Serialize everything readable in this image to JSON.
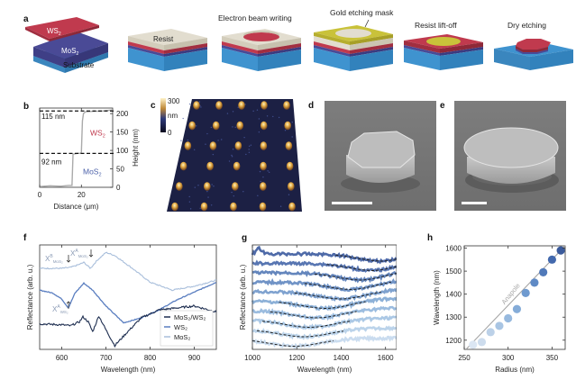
{
  "panel_labels": {
    "a": "a",
    "b": "b",
    "c": "c",
    "d": "d",
    "e": "e",
    "f": "f",
    "g": "g",
    "h": "h"
  },
  "panel_a": {
    "layers": {
      "top": "WS",
      "top_sub": "2",
      "middle": "MoS",
      "middle_sub": "2",
      "bottom": "Substrate"
    },
    "steps": [
      {
        "caption": "Resist",
        "position": "on-block"
      },
      {
        "caption": "Electron beam writing"
      },
      {
        "caption": "Gold etching mask"
      },
      {
        "caption": "Resist lift-off"
      },
      {
        "caption": "Dry etching"
      }
    ],
    "colors": {
      "ws2": "#c03a4e",
      "mos2": "#4a4a96",
      "substrate": "#3f93cf",
      "resist": "#e2ddcf",
      "gold": "#c9c23a"
    }
  },
  "chart_data": [
    {
      "panel": "b",
      "type": "line",
      "xlabel": "Distance (μm)",
      "ylabel": "Height (nm)",
      "xlim": [
        0,
        35
      ],
      "ylim": [
        0,
        215
      ],
      "xticks": [
        "0",
        "20"
      ],
      "yticks": [
        "0",
        "50",
        "100",
        "150",
        "200"
      ],
      "series": [
        {
          "name": "profile",
          "x": [
            0,
            5,
            10,
            14,
            15.5,
            16,
            18,
            19.5,
            20,
            20.5,
            21,
            22,
            25,
            30,
            35
          ],
          "y": [
            2,
            4,
            3,
            5,
            5,
            90,
            92,
            92,
            95,
            180,
            200,
            205,
            206,
            207,
            210
          ]
        }
      ],
      "annotations": [
        {
          "text": "115 nm"
        },
        {
          "text": "92 nm"
        },
        {
          "text": "WS",
          "sub": "2",
          "color": "#c03a4e"
        },
        {
          "text": "MoS",
          "sub": "2",
          "color": "#4a5fa8"
        }
      ],
      "dashed_levels": [
        92,
        207
      ]
    },
    {
      "panel": "c",
      "type": "heatmap",
      "colorbar": {
        "label": "nm",
        "min": "0",
        "max": "300"
      },
      "description": "AFM image of disk array",
      "grid_rows": 6,
      "grid_cols": 5
    },
    {
      "panel": "f",
      "type": "line",
      "xlabel": "Wavelength (nm)",
      "ylabel": "Reflectance (arb. u.)",
      "xlim": [
        550,
        950
      ],
      "xticks": [
        "600",
        "700",
        "800",
        "900"
      ],
      "legend": {
        "placement": "bottom-right",
        "entries": [
          {
            "label": "MoS₂/WS₂",
            "color": "#1e2e50"
          },
          {
            "label": "WS₂",
            "color": "#5a7ec0"
          },
          {
            "label": "MoS₂",
            "color": "#a8bedb"
          }
        ]
      },
      "series": [
        {
          "name": "MoS2",
          "color": "#a8bedb",
          "x": [
            550,
            600,
            620,
            640,
            650,
            665,
            680,
            700,
            720,
            760,
            800,
            850,
            900,
            950
          ],
          "y": [
            0.8,
            0.8,
            0.81,
            0.84,
            0.86,
            0.8,
            0.88,
            0.96,
            0.93,
            0.8,
            0.66,
            0.58,
            0.62,
            0.68
          ]
        },
        {
          "name": "WS2",
          "color": "#5a7ec0",
          "x": [
            550,
            580,
            600,
            615,
            630,
            650,
            670,
            700,
            740,
            780,
            820,
            860,
            900,
            950
          ],
          "y": [
            0.58,
            0.55,
            0.49,
            0.4,
            0.55,
            0.65,
            0.58,
            0.42,
            0.25,
            0.3,
            0.38,
            0.48,
            0.56,
            0.66
          ]
        },
        {
          "name": "MoS2/WS2",
          "color": "#1e2e50",
          "x": [
            550,
            600,
            620,
            640,
            648,
            660,
            670,
            684,
            700,
            720,
            745,
            780,
            820,
            860,
            900,
            950
          ],
          "y": [
            0.24,
            0.23,
            0.22,
            0.26,
            0.31,
            0.26,
            0.16,
            0.32,
            0.18,
            0.02,
            0.14,
            0.3,
            0.38,
            0.4,
            0.42,
            0.36
          ]
        }
      ],
      "annotations": [
        {
          "text": "X",
          "sup": "B",
          "sub": "MoS₂",
          "arrow": "down"
        },
        {
          "text": "X",
          "sup": "A",
          "sub": "MoS₂",
          "arrow": "down"
        },
        {
          "text": "X",
          "sup": "A",
          "sub": "WS₂",
          "arrow": "up"
        }
      ]
    },
    {
      "panel": "g",
      "type": "line",
      "xlabel": "Wavelength (nm)",
      "ylabel": "Reflectance (arb. u.)",
      "xlim": [
        1000,
        1650
      ],
      "xticks": [
        "1000",
        "1200",
        "1400",
        "1600"
      ],
      "n_series": 10,
      "series_colors": [
        "#4e6aa8",
        "#5876b2",
        "#6486bd",
        "#7093c6",
        "#7fa2cf",
        "#8cb0d7",
        "#9bbcdf",
        "#abc8e5",
        "#bbd3ea",
        "#cadcef"
      ],
      "fit_minima_nm": [
        1590,
        1550,
        1495,
        1450,
        1405,
        1335,
        1295,
        1262,
        1235,
        1190
      ],
      "fit_style": "dashed black"
    },
    {
      "panel": "h",
      "type": "scatter",
      "xlabel": "Radius (nm)",
      "ylabel": "Wavelength (nm)",
      "xlim": [
        250,
        365
      ],
      "ylim": [
        1160,
        1610
      ],
      "xticks": [
        "250",
        "300",
        "350"
      ],
      "yticks": [
        "1200",
        "1300",
        "1400",
        "1500",
        "1600"
      ],
      "x": [
        260,
        270,
        280,
        290,
        300,
        310,
        320,
        330,
        340,
        350,
        360
      ],
      "y": [
        1180,
        1192,
        1235,
        1262,
        1295,
        1335,
        1405,
        1450,
        1495,
        1550,
        1590
      ],
      "colors": [
        "#dbe6f3",
        "#cddced",
        "#bcd1e8",
        "#a9c5e3",
        "#97b9de",
        "#85acd8",
        "#6f9acf",
        "#5f8ac5",
        "#5079b9",
        "#4369ad",
        "#3a5a9b"
      ],
      "line": {
        "label": "Anapole",
        "x": [
          252,
          365
        ],
        "y": [
          1160,
          1610
        ],
        "color": "#a0a0a0"
      }
    }
  ]
}
